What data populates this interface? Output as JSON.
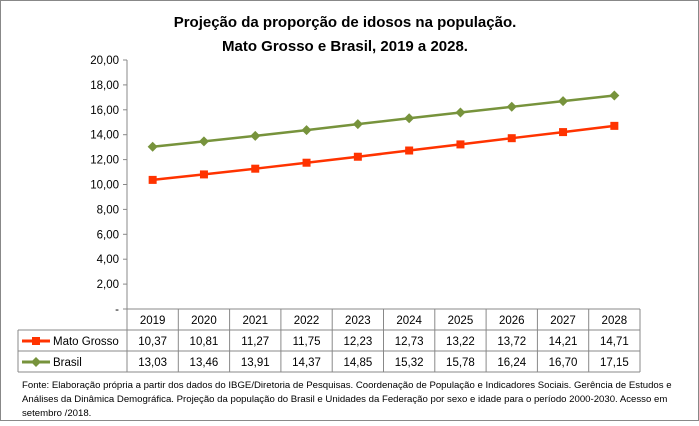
{
  "chart_data": {
    "type": "line",
    "title": [
      "Projeção da proporção de idosos na população.",
      "Mato Grosso e Brasil, 2019 a 2028."
    ],
    "categories": [
      "2019",
      "2020",
      "2021",
      "2022",
      "2023",
      "2024",
      "2025",
      "2026",
      "2027",
      "2028"
    ],
    "y_ticks": [
      "-",
      "2,00",
      "4,00",
      "6,00",
      "8,00",
      "10,00",
      "12,00",
      "14,00",
      "16,00",
      "18,00",
      "20,00"
    ],
    "ylim": [
      0,
      20
    ],
    "grid": false,
    "legend": "data-table",
    "series": [
      {
        "name": "Mato Grosso",
        "color": "#ff3300",
        "marker": "square",
        "values": [
          10.37,
          10.81,
          11.27,
          11.75,
          12.23,
          12.73,
          13.22,
          13.72,
          14.21,
          14.71
        ],
        "labels": [
          "10,37",
          "10,81",
          "11,27",
          "11,75",
          "12,23",
          "12,73",
          "13,22",
          "13,72",
          "14,21",
          "14,71"
        ]
      },
      {
        "name": "Brasil",
        "color": "#77933c",
        "marker": "diamond",
        "values": [
          13.03,
          13.46,
          13.91,
          14.37,
          14.85,
          15.32,
          15.78,
          16.24,
          16.7,
          17.15
        ],
        "labels": [
          "13,03",
          "13,46",
          "13,91",
          "14,37",
          "14,85",
          "15,32",
          "15,78",
          "16,24",
          "16,70",
          "17,15"
        ]
      }
    ]
  },
  "note": "Fonte: Elaboração própria a partir dos dados do IBGE/Diretoria de Pesquisas. Coordenação de População e Indicadores Sociais. Gerência de Estudos e Análises da Dinâmica Demográfica. Projeção da população do Brasil e Unidades da Federação por sexo e idade para o período 2000-2030. Acesso em setembro /2018."
}
